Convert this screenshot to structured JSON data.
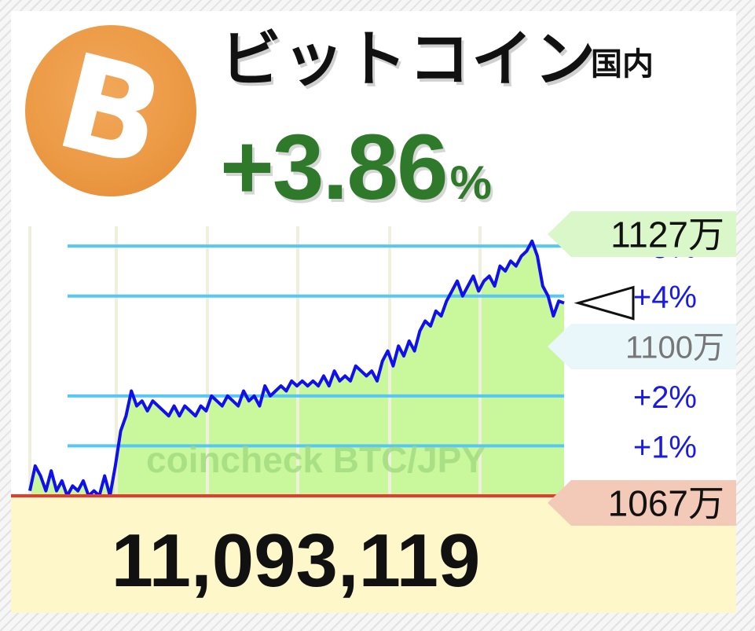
{
  "title": "ビットコイン",
  "market_label": "国内",
  "change": {
    "value": "+3.86",
    "unit": "%"
  },
  "current_price": "11,093,119",
  "logo_glyph": "B",
  "colors": {
    "change": "#2f7a2a",
    "line": "#1010ee",
    "area": "#c9f79c",
    "grid": "#56c8f5",
    "baseline": "#e83a2a",
    "logo": "#ec9a45"
  },
  "chart_data": {
    "type": "area",
    "watermark": "coincheck BTC/JPY",
    "price_labels": [
      "1127万",
      "1100万",
      "1067万"
    ],
    "percent_ticks": [
      {
        "label": "+1%",
        "value": 1
      },
      {
        "label": "+2%",
        "value": 2
      },
      {
        "label": "+4%",
        "value": 4
      },
      {
        "label": "+5%",
        "value": 5
      }
    ],
    "baseline_pct": 0,
    "current_pct": 3.86,
    "x_range": [
      0,
      100
    ],
    "y_range_pct": [
      0,
      5.6
    ],
    "series": [
      {
        "x": [
          0,
          1,
          2,
          3,
          4,
          5,
          6,
          7,
          8,
          9,
          10,
          11,
          12,
          13,
          14,
          15,
          16,
          17,
          18,
          19,
          20,
          21,
          22,
          23,
          24,
          25,
          26,
          27,
          28,
          29,
          30,
          31,
          32,
          33,
          34,
          35,
          36,
          37,
          38,
          39,
          40,
          41,
          42,
          43,
          44,
          45,
          46,
          47,
          48,
          49,
          50,
          51,
          52,
          53,
          54,
          55,
          56,
          57,
          58,
          59,
          60,
          61,
          62,
          63,
          64,
          65,
          66,
          67,
          68,
          69,
          70,
          71,
          72,
          73,
          74,
          75,
          76,
          77,
          78,
          79,
          80,
          81,
          82,
          83,
          84,
          85,
          86,
          87,
          88,
          89,
          90,
          91,
          92,
          93,
          94,
          95,
          96,
          97,
          98,
          99,
          100
        ],
        "values": [
          0.1,
          0.6,
          0.4,
          0.1,
          0.5,
          0.1,
          0.3,
          0.0,
          0.2,
          0.1,
          0.3,
          0.0,
          0.1,
          0.0,
          0.4,
          0.0,
          0.6,
          1.3,
          1.6,
          2.1,
          1.8,
          1.9,
          1.7,
          1.9,
          1.8,
          1.7,
          1.6,
          1.8,
          1.6,
          1.8,
          1.7,
          1.6,
          1.8,
          1.7,
          2.0,
          1.9,
          1.8,
          2.0,
          1.9,
          1.8,
          2.1,
          1.9,
          2.0,
          1.8,
          2.2,
          2.0,
          2.1,
          2.2,
          2.1,
          2.3,
          2.2,
          2.3,
          2.2,
          2.3,
          2.2,
          2.4,
          2.2,
          2.5,
          2.3,
          2.4,
          2.3,
          2.6,
          2.5,
          2.4,
          2.5,
          2.3,
          2.7,
          2.9,
          2.6,
          3.0,
          2.8,
          3.1,
          2.9,
          3.3,
          3.5,
          3.4,
          3.7,
          3.6,
          3.9,
          4.1,
          4.3,
          4.0,
          4.2,
          4.4,
          4.1,
          4.3,
          4.4,
          4.2,
          4.6,
          4.5,
          4.7,
          4.6,
          4.8,
          4.9,
          5.1,
          4.8,
          4.2,
          4.0,
          3.6,
          3.9,
          3.86
        ]
      }
    ]
  }
}
